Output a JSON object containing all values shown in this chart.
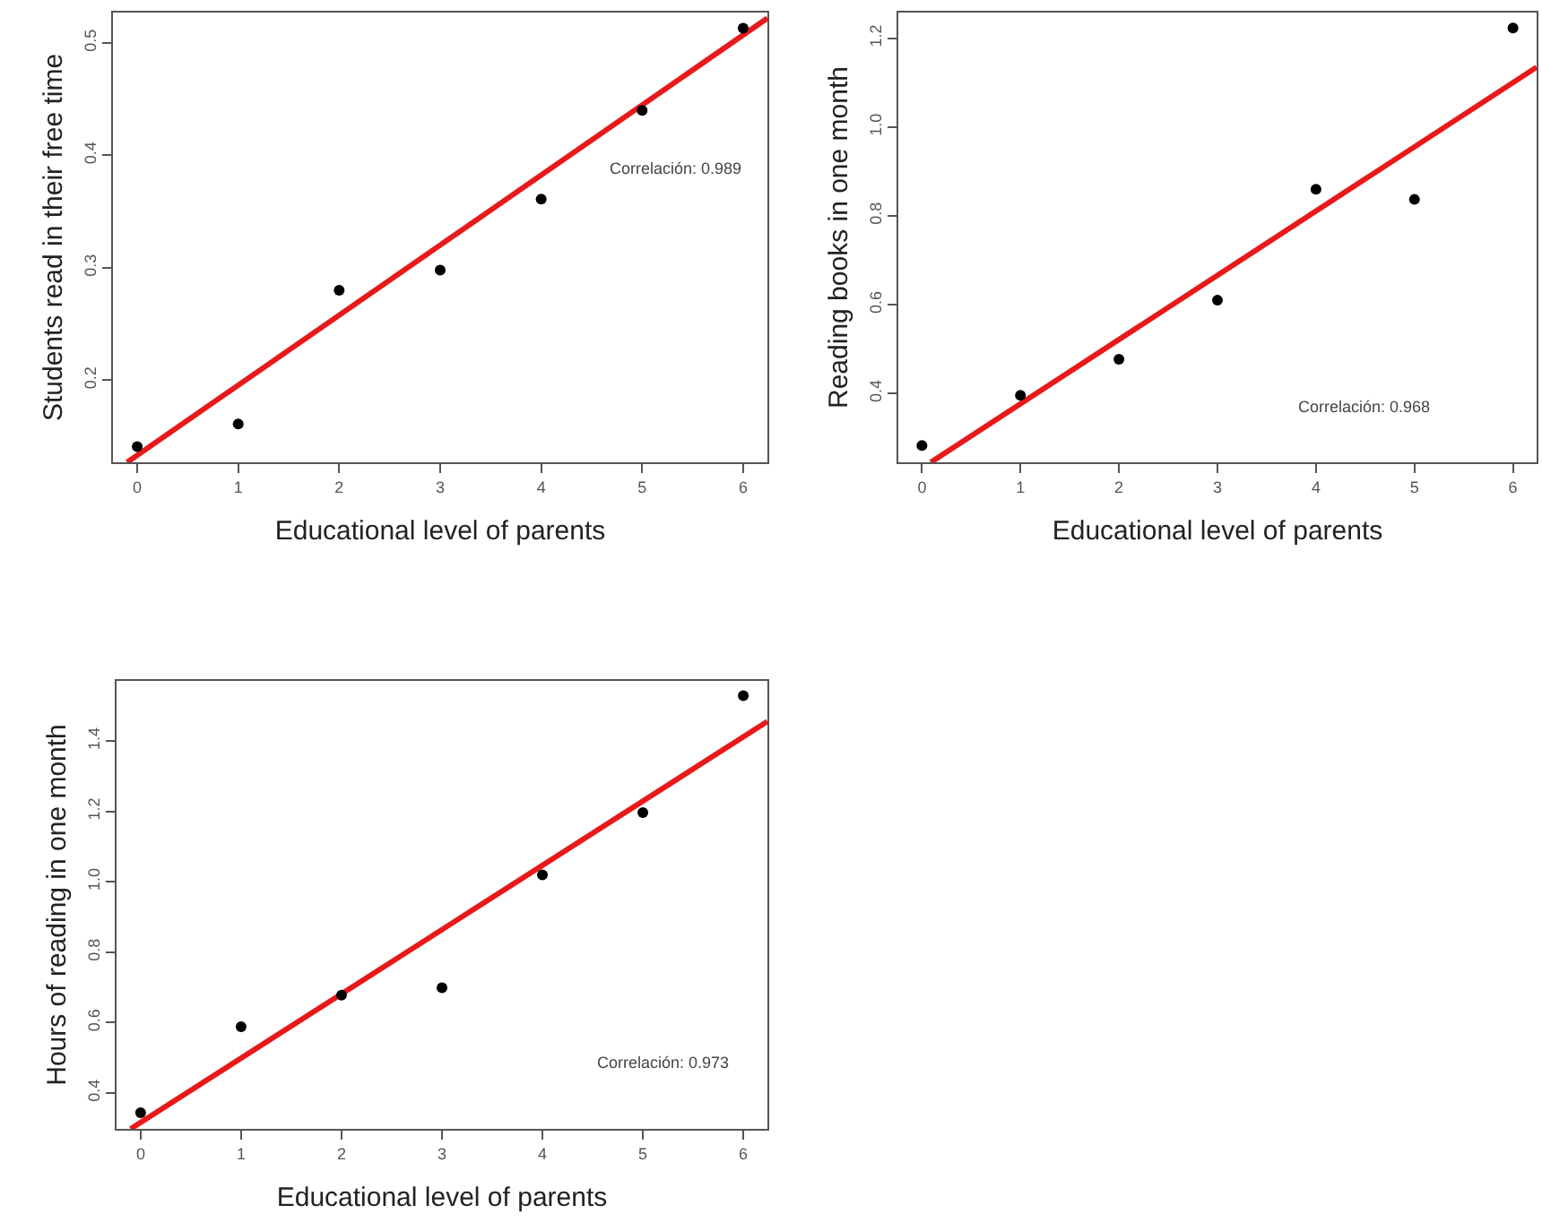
{
  "chart_data": [
    {
      "type": "scatter",
      "xlabel": "Educational level of parents",
      "ylabel": "Students read in their free time",
      "x": [
        0,
        1,
        2,
        3,
        4,
        5,
        6
      ],
      "xlim": [
        -0.24,
        6.24
      ],
      "ylim": [
        0.127,
        0.527
      ],
      "xticks": [
        0,
        1,
        2,
        3,
        4,
        5,
        6
      ],
      "yticks": [
        0.2,
        0.3,
        0.4,
        0.5
      ],
      "annotations": [
        "Correlación: 0.989"
      ],
      "series": [
        {
          "color": "#000000",
          "marker": "circle",
          "values": [
            0.141,
            0.161,
            0.28,
            0.298,
            0.361,
            0.44,
            0.513
          ]
        },
        {
          "type": "line",
          "color": "#e8191a",
          "marker": "none",
          "x": [
            -0.1,
            6.24
          ],
          "values": [
            0.127,
            0.522
          ]
        }
      ]
    },
    {
      "type": "scatter",
      "xlabel": "Educational level of parents",
      "ylabel": "Reading books in one month",
      "x": [
        0,
        1,
        2,
        3,
        4,
        5,
        6
      ],
      "xlim": [
        -0.24,
        6.24
      ],
      "ylim": [
        0.245,
        1.258
      ],
      "xticks": [
        0,
        1,
        2,
        3,
        4,
        5,
        6
      ],
      "yticks": [
        0.4,
        0.6,
        0.8,
        {
          "value": 1,
          "label": "1.0"
        },
        1.2
      ],
      "annotations": [
        "Correlación: 0.968"
      ],
      "series": [
        {
          "color": "#000000",
          "marker": "circle",
          "values": [
            0.283,
            0.396,
            0.477,
            0.61,
            0.86,
            0.837,
            1.223
          ]
        },
        {
          "type": "line",
          "color": "#e8191a",
          "marker": "none",
          "x": [
            0.09,
            6.24
          ],
          "values": [
            0.245,
            1.135
          ]
        }
      ]
    },
    {
      "type": "scatter",
      "xlabel": "Educational level of parents",
      "ylabel": "Hours of reading in one month",
      "x": [
        0,
        1,
        2,
        3,
        4,
        5,
        6
      ],
      "xlim": [
        -0.24,
        6.24
      ],
      "ylim": [
        0.298,
        1.571
      ],
      "xticks": [
        0,
        1,
        2,
        3,
        4,
        5,
        6
      ],
      "yticks": [
        0.4,
        0.6,
        0.8,
        {
          "value": 1,
          "label": "1.0"
        },
        1.2,
        1.4
      ],
      "annotations": [
        "Correlación: 0.973"
      ],
      "series": [
        {
          "color": "#000000",
          "marker": "circle",
          "values": [
            0.344,
            0.588,
            0.678,
            0.699,
            1.02,
            1.197,
            1.529
          ]
        },
        {
          "type": "line",
          "color": "#e8191a",
          "marker": "none",
          "x": [
            -0.1,
            6.24
          ],
          "values": [
            0.298,
            1.456
          ]
        }
      ]
    }
  ]
}
